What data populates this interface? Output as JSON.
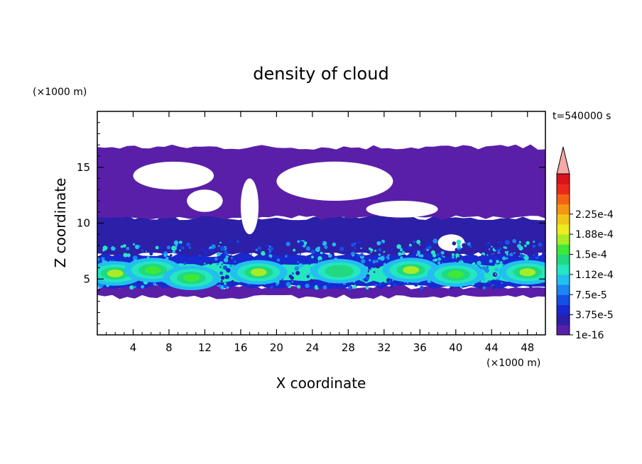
{
  "chart_data": {
    "type": "heatmap",
    "title": "density of cloud",
    "xlabel": "X coordinate",
    "ylabel": "Z coordinate",
    "x_unit": "(×1000 m)",
    "y_unit": "(×1000 m)",
    "time_label": "t=540000 s",
    "xlim": [
      0,
      50
    ],
    "ylim": [
      0,
      20
    ],
    "x_ticks": [
      4,
      8,
      12,
      16,
      20,
      24,
      28,
      32,
      36,
      40,
      44,
      48
    ],
    "y_ticks": [
      5,
      10,
      15
    ],
    "colorbar": {
      "levels": [
        "1e-16",
        "3.75e-5",
        "7.5e-5",
        "1.12e-4",
        "1.5e-4",
        "1.88e-4",
        "2.25e-4"
      ],
      "colors": [
        "#5a1fa8",
        "#2c1fa8",
        "#1a28cf",
        "#1550e6",
        "#1c86f2",
        "#22bff0",
        "#24e6c0",
        "#20d980",
        "#3ee83a",
        "#a8ec26",
        "#ecec20",
        "#f0c81a",
        "#f49614",
        "#f26414",
        "#ec2a1a",
        "#d8141c"
      ],
      "over_color": "#f4a8a8"
    },
    "field": {
      "cloud_base_km": 3.5,
      "core_height_km": [
        5,
        6
      ],
      "max_top_km": 17,
      "bands": [
        {
          "level": 0,
          "z": [
            3.4,
            4.3
          ]
        },
        {
          "level": 2,
          "z": [
            4.3,
            7.2
          ]
        },
        {
          "level": 6,
          "z": [
            4.8,
            6.2
          ]
        },
        {
          "level": 1,
          "z": [
            7.2,
            10.5
          ]
        },
        {
          "level": 0,
          "z": [
            10.5,
            16.8
          ]
        }
      ],
      "cores": [
        {
          "x": 2,
          "z": 5.5,
          "level": 9
        },
        {
          "x": 6.2,
          "z": 5.8,
          "level": 8
        },
        {
          "x": 10.5,
          "z": 5.1,
          "level": 8
        },
        {
          "x": 18,
          "z": 5.6,
          "level": 9
        },
        {
          "x": 27,
          "z": 5.7,
          "level": 7
        },
        {
          "x": 35,
          "z": 5.8,
          "level": 9
        },
        {
          "x": 40,
          "z": 5.4,
          "level": 8
        },
        {
          "x": 48,
          "z": 5.6,
          "level": 9
        }
      ]
    }
  }
}
